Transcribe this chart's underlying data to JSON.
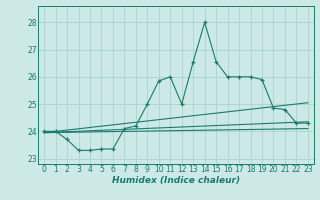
{
  "xlabel": "Humidex (Indice chaleur)",
  "xlim": [
    -0.5,
    23.5
  ],
  "ylim": [
    22.8,
    28.6
  ],
  "yticks": [
    23,
    24,
    25,
    26,
    27,
    28
  ],
  "xticks": [
    0,
    1,
    2,
    3,
    4,
    5,
    6,
    7,
    8,
    9,
    10,
    11,
    12,
    13,
    14,
    15,
    16,
    17,
    18,
    19,
    20,
    21,
    22,
    23
  ],
  "bg_color": "#cce9e5",
  "line_color": "#1a7a6e",
  "grid_color": "#aad4ce",
  "main_line": [
    [
      0,
      24.0
    ],
    [
      1,
      24.0
    ],
    [
      2,
      23.7
    ],
    [
      3,
      23.3
    ],
    [
      4,
      23.3
    ],
    [
      5,
      23.35
    ],
    [
      6,
      23.35
    ],
    [
      7,
      24.1
    ],
    [
      8,
      24.2
    ],
    [
      9,
      25.0
    ],
    [
      10,
      25.85
    ],
    [
      11,
      26.0
    ],
    [
      12,
      25.0
    ],
    [
      13,
      26.55
    ],
    [
      14,
      28.0
    ],
    [
      15,
      26.55
    ],
    [
      16,
      26.0
    ],
    [
      17,
      26.0
    ],
    [
      18,
      26.0
    ],
    [
      19,
      25.9
    ],
    [
      20,
      24.85
    ],
    [
      21,
      24.8
    ],
    [
      22,
      24.3
    ],
    [
      23,
      24.3
    ]
  ],
  "trend_lines": [
    [
      [
        0,
        23.95
      ],
      [
        23,
        24.1
      ]
    ],
    [
      [
        0,
        23.95
      ],
      [
        23,
        24.35
      ]
    ],
    [
      [
        0,
        23.95
      ],
      [
        23,
        25.05
      ]
    ]
  ]
}
